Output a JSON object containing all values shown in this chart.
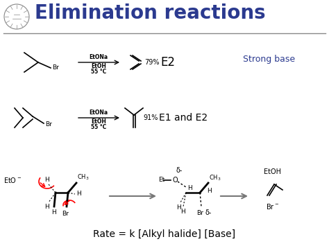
{
  "title": "Elimination reactions",
  "title_color": "#2B3A8F",
  "title_fontsize": 20,
  "bg_color": "#FFFFFF",
  "strong_base_text": "Strong base",
  "strong_base_color": "#2B3A8F",
  "reaction1_label": "E2",
  "reaction2_label": "E1 and E2",
  "reaction1_conditions": "EtONa\nEtOH\n55 °C",
  "reaction2_conditions": "EtONa\nEtOH\n55 °C",
  "reaction1_yield": "79%",
  "reaction2_yield": "91%",
  "rate_eq": "Rate = k [Alkyl halide] [Base]",
  "text_color": "#000000",
  "arrow_color": "#555555"
}
